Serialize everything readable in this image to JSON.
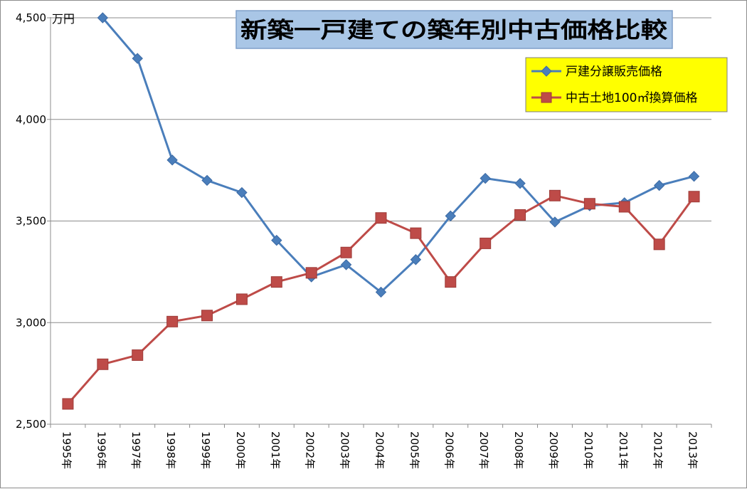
{
  "chart_data": {
    "type": "line",
    "title": "新築一戸建ての築年別中古価格比較",
    "unit_label": "万円",
    "ylim": [
      2500,
      4500
    ],
    "y_ticks": [
      "2,500",
      "3,000",
      "3,500",
      "4,000",
      "4,500"
    ],
    "y_tick_values": [
      2500,
      3000,
      3500,
      4000,
      4500
    ],
    "grid": "horizontal",
    "legend_placement": "top-right",
    "categories": [
      "1995年",
      "1996年",
      "1997年",
      "1998年",
      "1999年",
      "2000年",
      "2001年",
      "2002年",
      "2003年",
      "2004年",
      "2005年",
      "2006年",
      "2007年",
      "2008年",
      "2009年",
      "2010年",
      "2011年",
      "2012年",
      "2013年"
    ],
    "series": [
      {
        "name": "戸建分譲販売価格",
        "color": "#4a7ebb",
        "marker": "diamond",
        "values": [
          null,
          4500,
          4300,
          3800,
          3700,
          3640,
          3405,
          3225,
          3285,
          3150,
          3310,
          3525,
          3710,
          3685,
          3495,
          3575,
          3590,
          3675,
          3720
        ]
      },
      {
        "name": "中古土地100㎡換算価格",
        "color": "#be4b48",
        "marker": "square",
        "values": [
          2600,
          2795,
          2840,
          3005,
          3035,
          3115,
          3200,
          3245,
          3345,
          3515,
          3440,
          3200,
          3390,
          3530,
          3625,
          3585,
          3570,
          3385,
          3620
        ]
      }
    ]
  }
}
